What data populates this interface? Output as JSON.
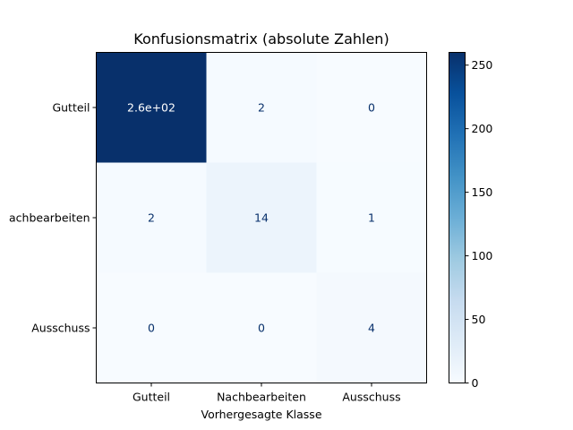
{
  "chart_data": {
    "type": "heatmap",
    "title": "Konfusionsmatrix (absolute Zahlen)",
    "xlabel": "Vorhergesagte Klasse",
    "ylabel": "",
    "x_categories": [
      "Gutteil",
      "Nachbearbeiten",
      "Ausschuss"
    ],
    "y_categories": [
      "Gutteil",
      "Nachbearbeiten",
      "Ausschuss"
    ],
    "y_tick_labels_display": [
      "Gutteil",
      "achbearbeiten",
      "Ausschuss"
    ],
    "values": [
      [
        260,
        2,
        0
      ],
      [
        2,
        14,
        1
      ],
      [
        0,
        0,
        4
      ]
    ],
    "cell_labels": [
      [
        "2.6e+02",
        "2",
        "0"
      ],
      [
        "2",
        "14",
        "1"
      ],
      [
        "0",
        "0",
        "4"
      ]
    ],
    "colormap": "Blues",
    "colorbar": {
      "range": [
        0,
        260
      ],
      "ticks": [
        0,
        50,
        100,
        150,
        200,
        250
      ],
      "tick_labels": [
        "0",
        "50",
        "100",
        "150",
        "200",
        "250"
      ]
    },
    "colors": {
      "light_text": "#ffffff",
      "dark_text": "#08306b"
    }
  }
}
